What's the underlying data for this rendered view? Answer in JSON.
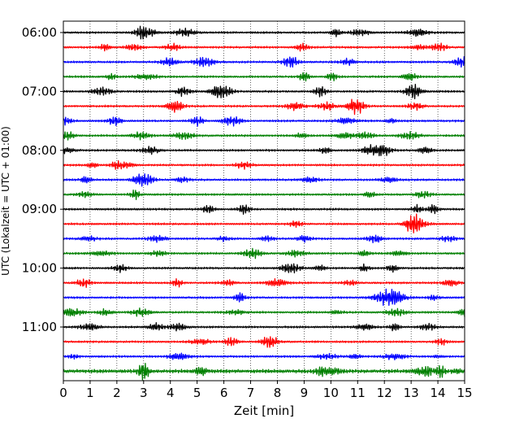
{
  "chart_data": {
    "type": "line",
    "title": "",
    "xlabel": "Zeit  [min]",
    "ylabel": "UTC (Lokalzeit = UTC + 01:00)",
    "xlim": [
      0,
      15
    ],
    "x_ticks": [
      "0",
      "1",
      "2",
      "3",
      "4",
      "5",
      "6",
      "7",
      "8",
      "9",
      "10",
      "11",
      "12",
      "13",
      "14",
      "15"
    ],
    "y_ticks": [
      "06:00",
      "07:00",
      "08:00",
      "09:00",
      "10:00",
      "11:00"
    ],
    "grid": "vertical dotted lines at each minute",
    "legend": "none",
    "trace_colors": [
      "#000000",
      "#ff0000",
      "#0000ff",
      "#008000"
    ],
    "trace_interval_minutes": 15,
    "traces": [
      {
        "start": "06:00",
        "color": "#000000"
      },
      {
        "start": "06:15",
        "color": "#ff0000"
      },
      {
        "start": "06:30",
        "color": "#0000ff"
      },
      {
        "start": "06:45",
        "color": "#008000"
      },
      {
        "start": "07:00",
        "color": "#000000"
      },
      {
        "start": "07:15",
        "color": "#ff0000"
      },
      {
        "start": "07:30",
        "color": "#0000ff"
      },
      {
        "start": "07:45",
        "color": "#008000"
      },
      {
        "start": "08:00",
        "color": "#000000"
      },
      {
        "start": "08:15",
        "color": "#ff0000"
      },
      {
        "start": "08:30",
        "color": "#0000ff"
      },
      {
        "start": "08:45",
        "color": "#008000"
      },
      {
        "start": "09:00",
        "color": "#000000"
      },
      {
        "start": "09:15",
        "color": "#ff0000"
      },
      {
        "start": "09:30",
        "color": "#0000ff"
      },
      {
        "start": "09:45",
        "color": "#008000"
      },
      {
        "start": "10:00",
        "color": "#000000"
      },
      {
        "start": "10:15",
        "color": "#ff0000"
      },
      {
        "start": "10:30",
        "color": "#0000ff"
      },
      {
        "start": "10:45",
        "color": "#008000"
      },
      {
        "start": "11:00",
        "color": "#000000"
      },
      {
        "start": "11:15",
        "color": "#ff0000"
      },
      {
        "start": "11:30",
        "color": "#0000ff",
        "events": [
          {
            "minute": 0.4,
            "amp": 0.25
          },
          {
            "minute": 14.0,
            "amp": 0.2
          }
        ]
      },
      {
        "start": "11:45",
        "color": "#008000",
        "events": [
          {
            "minute": 3.0,
            "amp": 1.3
          },
          {
            "minute": 13.6,
            "amp": 0.7
          },
          {
            "minute": 14.1,
            "amp": 0.8
          },
          {
            "minute": 14.7,
            "amp": 0.3
          }
        ]
      }
    ]
  }
}
